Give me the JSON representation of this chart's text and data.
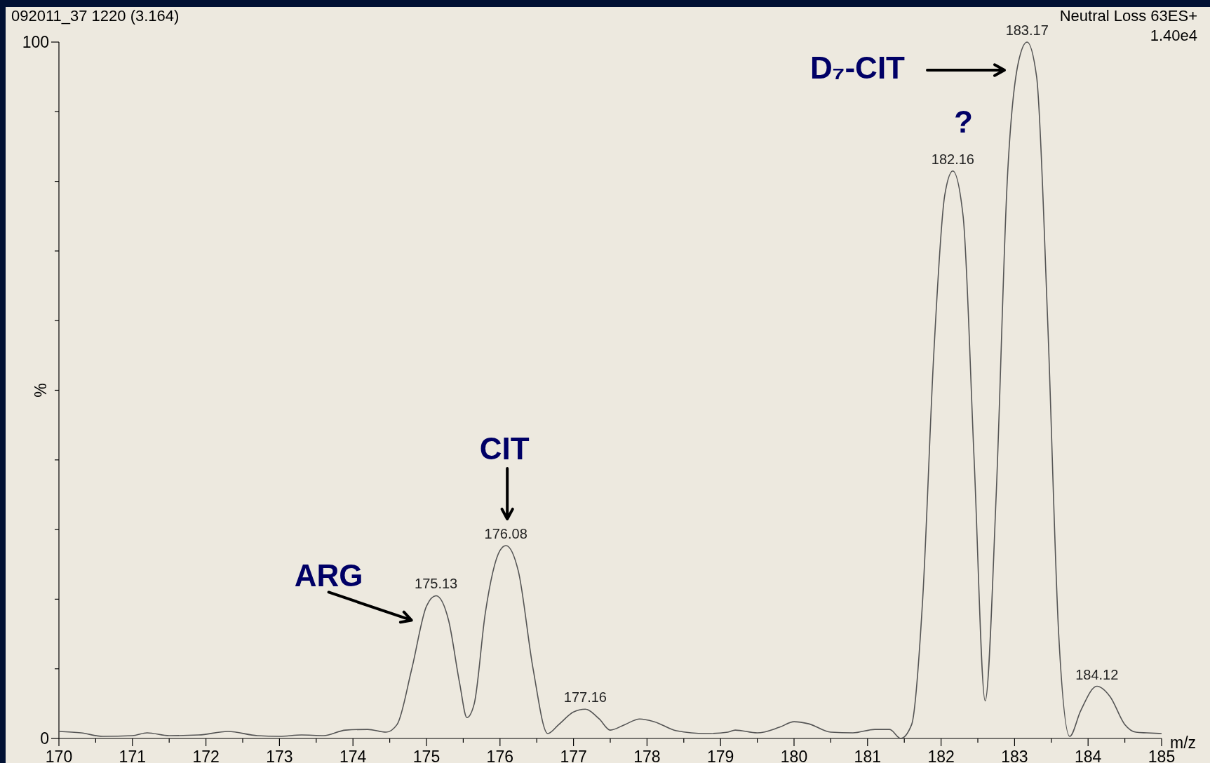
{
  "chart_data": {
    "type": "line",
    "ylabel": "%",
    "xlabel": "m/z",
    "xlim": [
      170,
      185
    ],
    "ylim": [
      0,
      100
    ],
    "xticks": [
      170,
      {
        "value": 170.5,
        "label": null
      },
      171,
      {
        "value": 171.5,
        "label": null
      },
      172,
      {
        "value": 172.5,
        "label": null
      },
      173,
      {
        "value": 173.5,
        "label": null
      },
      174,
      {
        "value": 174.5,
        "label": null
      },
      175,
      {
        "value": 175.5,
        "label": null
      },
      176,
      {
        "value": 176.5,
        "label": null
      },
      177,
      {
        "value": 177.5,
        "label": null
      },
      178,
      {
        "value": 178.5,
        "label": null
      },
      179,
      {
        "value": 179.5,
        "label": null
      },
      180,
      {
        "value": 180.5,
        "label": null
      },
      181,
      {
        "value": 181.5,
        "label": null
      },
      182,
      {
        "value": 182.5,
        "label": null
      },
      183,
      {
        "value": 183.5,
        "label": null
      },
      184,
      {
        "value": 184.5,
        "label": null
      },
      185
    ],
    "yticks": [
      0,
      {
        "value": 10,
        "label": null
      },
      {
        "value": 20,
        "label": null
      },
      {
        "value": 30,
        "label": null
      },
      {
        "value": 40,
        "label": null
      },
      {
        "value": 50,
        "label": null
      },
      {
        "value": 60,
        "label": null
      },
      {
        "value": 70,
        "label": null
      },
      {
        "value": 80,
        "label": null
      },
      {
        "value": 90,
        "label": null
      },
      100
    ],
    "grid": false,
    "marker": "none",
    "line_style": "solid",
    "series": [
      {
        "color": "#555555",
        "x": [
          170.0,
          170.3,
          170.6,
          171.0,
          171.2,
          171.5,
          171.9,
          172.3,
          172.7,
          173.0,
          173.3,
          173.6,
          173.9,
          174.2,
          174.45,
          174.6,
          174.8,
          175.0,
          175.13,
          175.3,
          175.45,
          175.55,
          175.65,
          175.8,
          176.0,
          176.08,
          176.25,
          176.45,
          176.65,
          176.8,
          177.0,
          177.16,
          177.35,
          177.5,
          177.7,
          177.9,
          178.1,
          178.4,
          178.8,
          179.1,
          179.2,
          179.5,
          179.8,
          180.0,
          180.2,
          180.5,
          180.8,
          181.1,
          181.3,
          181.45,
          181.6,
          181.75,
          181.9,
          182.05,
          182.16,
          182.3,
          182.45,
          182.6,
          182.75,
          182.9,
          183.05,
          183.17,
          183.3,
          183.45,
          183.6,
          183.75,
          183.9,
          184.12,
          184.3,
          184.5,
          184.65,
          184.8,
          185.0
        ],
        "values": [
          1.0,
          0.8,
          0.3,
          0.4,
          0.8,
          0.4,
          0.5,
          1.0,
          0.4,
          0.3,
          0.5,
          0.4,
          1.2,
          1.3,
          0.9,
          2,
          10,
          19,
          20.5,
          17,
          8,
          3.0,
          5,
          18,
          27,
          27.7,
          24,
          10,
          0.7,
          2,
          3.8,
          4.2,
          2.8,
          1.2,
          2.0,
          2.8,
          2.4,
          1.1,
          0.7,
          0.9,
          1.2,
          0.8,
          1.6,
          2.4,
          2.1,
          0.9,
          0.8,
          1.3,
          1.3,
          0,
          2,
          20,
          55,
          78,
          81.5,
          75,
          40,
          5.4,
          35,
          80,
          97,
          100,
          95,
          60,
          15,
          0.3,
          4,
          7.5,
          6,
          2,
          0.9,
          0.8,
          0.7
        ]
      }
    ],
    "annotations": [
      "092011_37  1220 (3.164)",
      "Neutral Loss 63ES+",
      "1.40e4",
      {
        "text": "ARG",
        "x": 175.13,
        "y": 20.5
      },
      {
        "text": "CIT",
        "x": 176.08,
        "y": 27.7
      },
      "D₇-CIT",
      {
        "text": "?",
        "x": 182.16,
        "y": 81.5
      },
      {
        "text": "175.13",
        "x": 175.13,
        "y": 20.5
      },
      {
        "text": "176.08",
        "x": 176.08,
        "y": 27.7
      },
      {
        "text": "177.16",
        "x": 177.16,
        "y": 4.2
      },
      {
        "text": "182.16",
        "x": 182.16,
        "y": 81.5
      },
      {
        "text": "183.17",
        "x": 183.17,
        "y": 100
      },
      {
        "text": "184.12",
        "x": 184.12,
        "y": 7.5
      }
    ]
  }
}
